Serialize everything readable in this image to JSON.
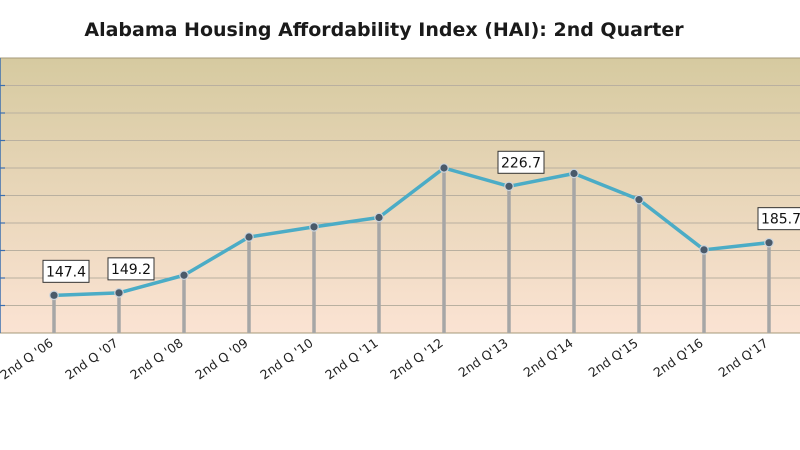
{
  "chart_data": {
    "type": "line",
    "title": "Alabama Housing Affordability Index (HAI):   2nd Quarter",
    "categories": [
      "2nd Q '06",
      "2nd Q '07",
      "2nd Q '08",
      "2nd Q '09",
      "2nd Q '10",
      "2nd Q '11",
      "2nd Q '12",
      "2nd Q'13",
      "2nd Q'14",
      "2nd Q'15",
      "2nd Q'16",
      "2nd Q'17"
    ],
    "series": [
      {
        "values": [
          147.4,
          149.2,
          162.0,
          189.8,
          197.2,
          204.0,
          240.0,
          226.7,
          236.0,
          217.0,
          180.5,
          185.7
        ]
      }
    ],
    "data_labels": [
      {
        "index": 0,
        "text": "147.4"
      },
      {
        "index": 1,
        "text": "149.2"
      },
      {
        "index": 7,
        "text": "226.7"
      },
      {
        "index": 11,
        "text": "185.7"
      }
    ],
    "ylim": [
      120,
      320
    ],
    "grid": true,
    "drop_lines": true,
    "colors": {
      "line": "#4bacc6",
      "marker_fill": "#4a5a6a",
      "marker_stroke": "#c9d3dc",
      "drop_line": "#a6a6a6",
      "plot_top": "#d6caa0",
      "plot_bottom": "#fbe3d3",
      "grid": "#b9b0a0",
      "axis": "#3b6fb0"
    }
  }
}
